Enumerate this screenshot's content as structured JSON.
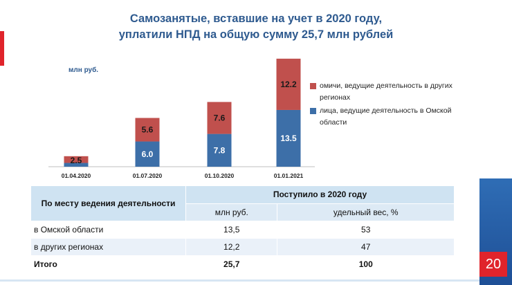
{
  "title_line1": "Самозанятые, вставшие на учет в 2020 году,",
  "title_line2": "уплатили НПД на общую сумму  25,7 млн рублей",
  "page_number": "20",
  "colors": {
    "red_series": "#c0504d",
    "blue_series": "#3d6fa8",
    "accent_red": "#e0242b",
    "title_blue": "#2e5a8f"
  },
  "chart_data": {
    "type": "bar",
    "stacked": true,
    "unit_label": "млн руб.",
    "categories": [
      "01.04.2020",
      "01.07.2020",
      "01.10.2020",
      "01.01.2021"
    ],
    "series": [
      {
        "name": "лица, ведущие деятельность в Омской области",
        "values": [
          0.9,
          6.0,
          7.8,
          13.5
        ],
        "labels": [
          "",
          "6.0",
          "7.8",
          "13.5"
        ]
      },
      {
        "name": "омичи, ведущие деятельность в других регионах",
        "values": [
          1.6,
          5.6,
          7.6,
          12.2
        ],
        "labels": [
          "",
          "5.6",
          "7.6",
          "12.2"
        ]
      }
    ],
    "total_labels": [
      "2.5",
      "",
      "",
      ""
    ],
    "ylim": [
      0,
      26
    ]
  },
  "table": {
    "header_left": "По месту ведения деятельности",
    "header_top": "Поступило в 2020 году",
    "header_col1": "млн руб.",
    "header_col2": "удельный вес, %",
    "rows": [
      {
        "label": "в Омской области",
        "col1": "13,5",
        "col2": "53"
      },
      {
        "label": "в других регионах",
        "col1": "12,2",
        "col2": "47"
      },
      {
        "label": "Итого",
        "col1": "25,7",
        "col2": "100"
      }
    ]
  }
}
